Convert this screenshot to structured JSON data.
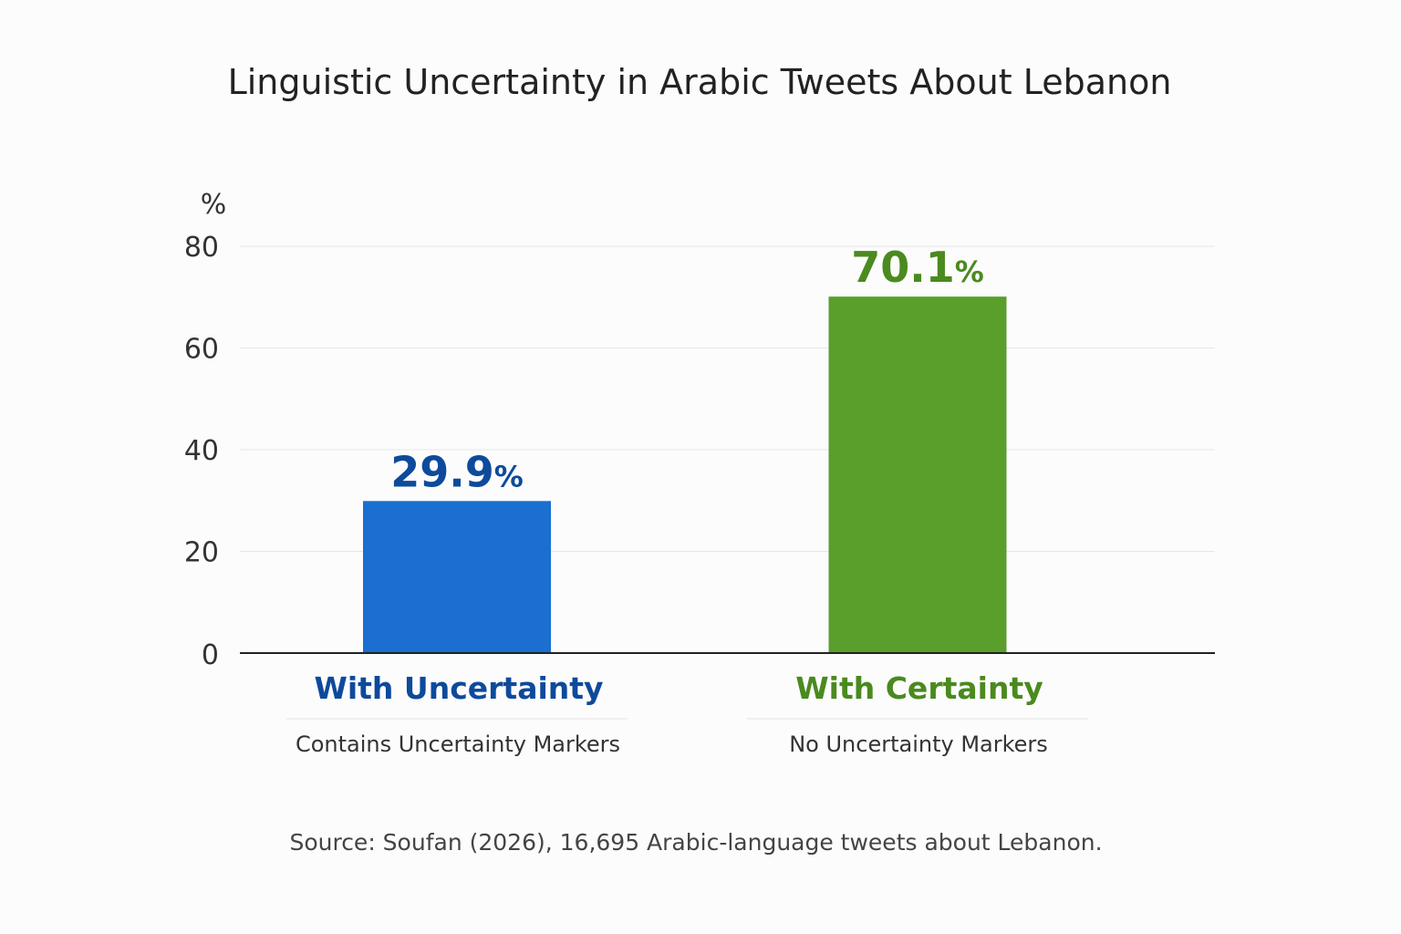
{
  "chart_data": {
    "type": "bar",
    "title": "Linguistic Uncertainty in Arabic Tweets About Lebanon",
    "ylabel": "%",
    "ylim": [
      0,
      80
    ],
    "yticks": [
      "0",
      "20",
      "40",
      "60",
      "80"
    ],
    "grid": true,
    "categories": [
      "With Uncertainty",
      "With Certainty"
    ],
    "subcategories": [
      "Contains Uncertainty Markers",
      "No Uncertainty Markers"
    ],
    "values": [
      29.9,
      70.1
    ],
    "data_labels": [
      "29.9",
      "70.1"
    ],
    "data_label_suffix": "%",
    "colors": [
      "#1a6fd0",
      "#5a9e2b"
    ],
    "label_colors": [
      "#0d4a9c",
      "#4a8a1e"
    ],
    "source": "Source: Soufan (2026), 16,695 Arabic-language tweets about Lebanon."
  }
}
